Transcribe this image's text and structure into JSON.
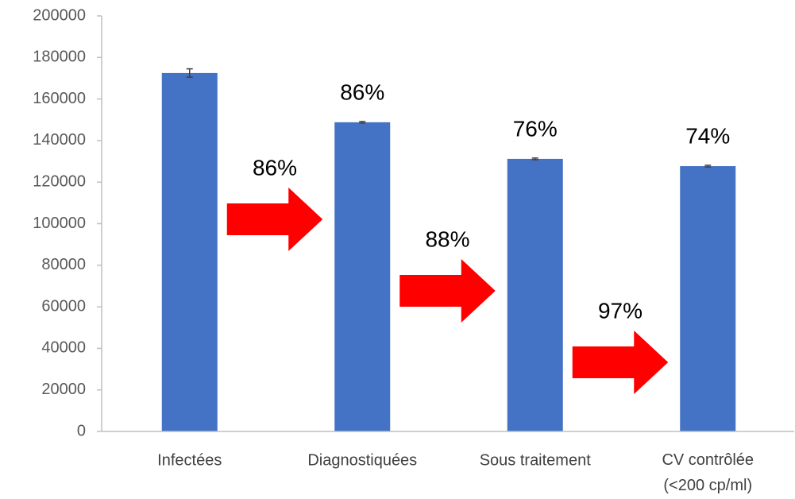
{
  "chart_data": {
    "type": "bar",
    "categories": [
      "Infectées",
      "Diagnostiquées",
      "Sous traitement",
      "CV contrôlée\n(<200 cp/ml)"
    ],
    "values": [
      172500,
      148800,
      131200,
      127700
    ],
    "errors": [
      2000,
      400,
      400,
      400
    ],
    "color": "#4472c4",
    "ylim": [
      0,
      200000
    ],
    "yticks": [
      0,
      20000,
      40000,
      60000,
      80000,
      100000,
      120000,
      140000,
      160000,
      180000,
      200000
    ],
    "grid": false,
    "bar_annotations": [
      {
        "category": "Diagnostiquées",
        "text": "86%"
      },
      {
        "category": "Sous traitement",
        "text": "76%"
      },
      {
        "category": "CV contrôlée\n(<200 cp/ml)",
        "text": "74%"
      }
    ],
    "arrows": [
      {
        "from": "Infectées",
        "to": "Diagnostiquées",
        "text": "86%",
        "color": "#ff0000"
      },
      {
        "from": "Diagnostiquées",
        "to": "Sous traitement",
        "text": "88%",
        "color": "#ff0000"
      },
      {
        "from": "Sous traitement",
        "to": "CV contrôlée\n(<200 cp/ml)",
        "text": "97%",
        "color": "#ff0000"
      }
    ]
  }
}
